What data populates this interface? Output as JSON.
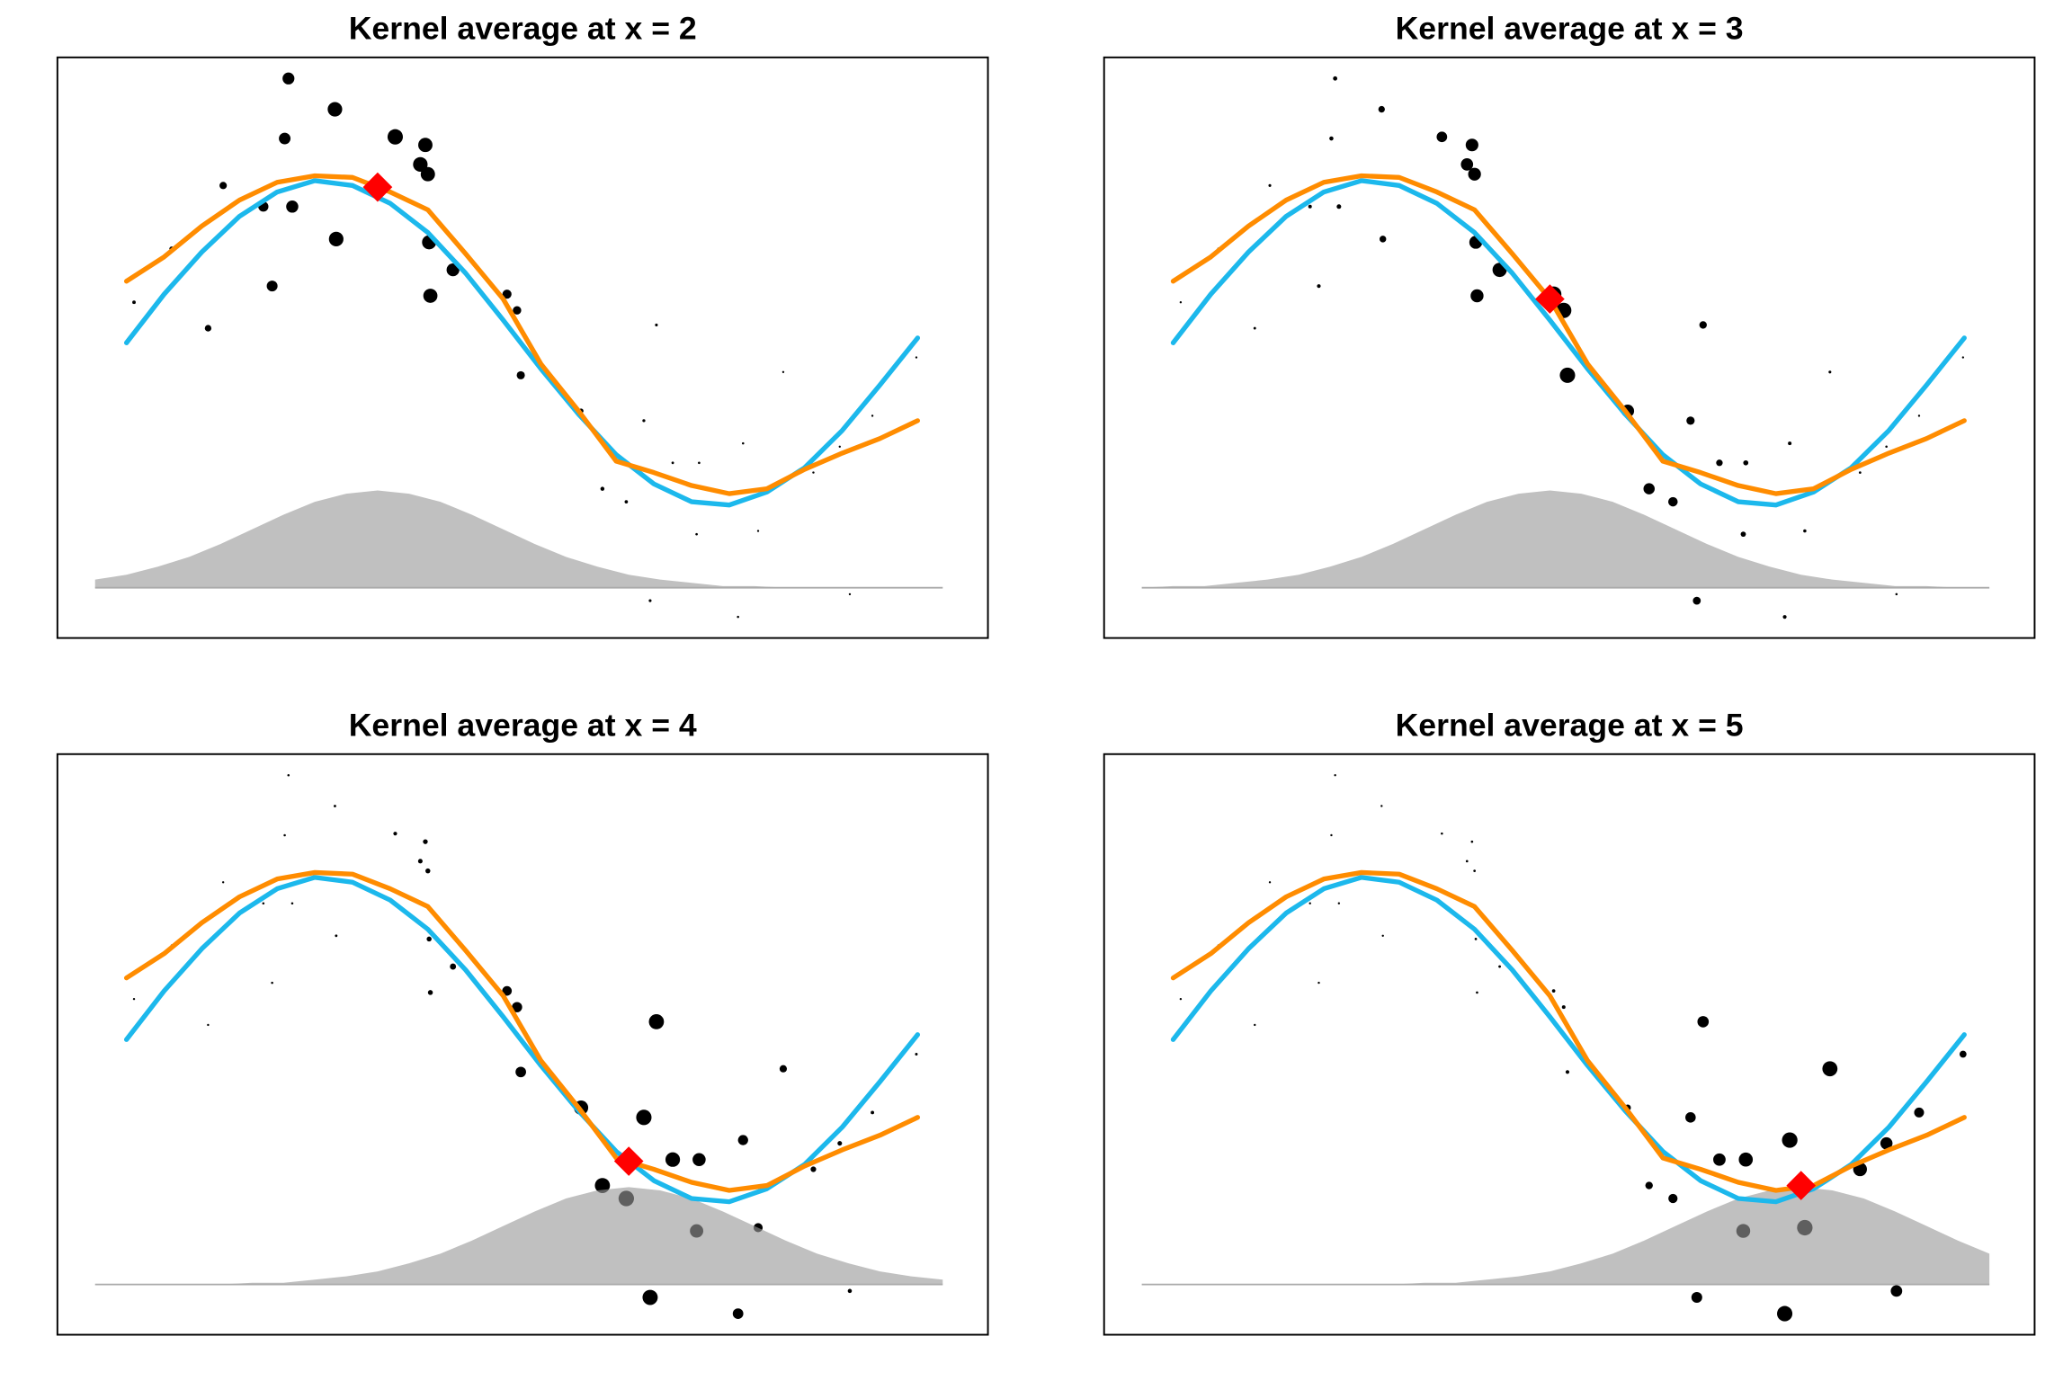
{
  "chart_data": [
    {
      "type": "scatter",
      "title": "Kernel average at x = 2",
      "xlim": [
        -0.55,
        6.86
      ],
      "ylim": [
        -1.82,
        1.76
      ],
      "x": [
        0,
        0.3,
        0.6,
        0.9,
        1.2,
        1.5,
        1.8,
        2.1,
        2.4,
        2.7,
        3.0,
        3.3,
        3.6,
        3.9,
        4.2,
        4.5,
        4.8,
        5.1,
        5.4,
        5.7,
        6.0,
        6.3
      ],
      "series": [
        {
          "color": "#1cb8ec",
          "values": [
            0,
            0.3,
            0.56,
            0.78,
            0.93,
            1.0,
            0.97,
            0.86,
            0.68,
            0.43,
            0.14,
            -0.16,
            -0.44,
            -0.69,
            -0.87,
            -0.98,
            -1.0,
            -0.92,
            -0.77,
            -0.54,
            -0.26,
            0.03
          ]
        },
        {
          "color": "#ff8c00",
          "values": [
            0.38,
            0.53,
            0.72,
            0.88,
            0.99,
            1.03,
            1.02,
            0.93,
            0.82,
            0.55,
            0.27,
            -0.13,
            -0.42,
            -0.73,
            -0.8,
            -0.88,
            -0.93,
            -0.9,
            -0.78,
            -0.68,
            -0.59,
            -0.48
          ]
        }
      ],
      "points": {
        "color": "#000000",
        "x": [
          0.06,
          0.36,
          0.65,
          0.77,
          1.09,
          1.16,
          1.26,
          1.29,
          1.32,
          1.66,
          1.67,
          2.14,
          2.34,
          2.38,
          2.4,
          2.41,
          2.42,
          2.6,
          3.03,
          3.11,
          3.14,
          3.62,
          3.79,
          3.98,
          4.12,
          4.17,
          4.22,
          4.35,
          4.54,
          4.56,
          4.87,
          4.91,
          5.03,
          5.23,
          5.47,
          5.68,
          5.76,
          5.94,
          6.29
        ],
        "y": [
          0.25,
          0.58,
          0.09,
          0.97,
          0.84,
          0.35,
          1.26,
          1.63,
          0.84,
          1.44,
          0.64,
          1.27,
          1.1,
          1.22,
          1.04,
          0.62,
          0.29,
          0.45,
          0.3,
          0.2,
          -0.2,
          -0.42,
          -0.9,
          -0.98,
          -0.48,
          -1.59,
          0.11,
          -0.74,
          -1.18,
          -0.74,
          -1.69,
          -0.62,
          -1.16,
          -0.18,
          -0.8,
          -0.64,
          -1.55,
          -0.45,
          -0.09
        ],
        "sizes": [
          0.1,
          0.19,
          0.33,
          0.39,
          0.6,
          0.65,
          0.71,
          0.73,
          0.75,
          0.93,
          0.93,
          0.99,
          0.93,
          0.91,
          0.91,
          0.9,
          0.9,
          0.8,
          0.52,
          0.47,
          0.45,
          0.2,
          0.14,
          0.09,
          0.06,
          0.05,
          0.05,
          0.03,
          0.02,
          0.02,
          0.01,
          0.01,
          0,
          0,
          0,
          0,
          0,
          0,
          0
        ]
      },
      "kernel": {
        "color": "#999999",
        "base": -1.51,
        "x": [
          -0.25,
          0,
          0.25,
          0.5,
          0.75,
          1,
          1.25,
          1.5,
          1.75,
          2,
          2.25,
          2.5,
          2.75,
          3,
          3.25,
          3.5,
          3.75,
          4,
          4.25,
          4.5,
          4.75,
          5,
          5.25,
          5.5,
          5.75,
          6,
          6.25,
          6.5
        ],
        "values": [
          0.05,
          0.08,
          0.13,
          0.19,
          0.27,
          0.36,
          0.45,
          0.53,
          0.58,
          0.6,
          0.58,
          0.53,
          0.45,
          0.36,
          0.27,
          0.19,
          0.13,
          0.08,
          0.05,
          0.03,
          0.01,
          0.01,
          0,
          0,
          0,
          0,
          0,
          0
        ]
      },
      "marker": {
        "color": "#ff0000",
        "x": 2,
        "y": 0.96
      }
    },
    {
      "type": "scatter",
      "title": "Kernel average at x = 3",
      "xlim": [
        -0.55,
        6.86
      ],
      "ylim": [
        -1.82,
        1.76
      ],
      "x": [
        0,
        0.3,
        0.6,
        0.9,
        1.2,
        1.5,
        1.8,
        2.1,
        2.4,
        2.7,
        3.0,
        3.3,
        3.6,
        3.9,
        4.2,
        4.5,
        4.8,
        5.1,
        5.4,
        5.7,
        6.0,
        6.3
      ],
      "series": [
        {
          "color": "#1cb8ec",
          "values": [
            0,
            0.3,
            0.56,
            0.78,
            0.93,
            1.0,
            0.97,
            0.86,
            0.68,
            0.43,
            0.14,
            -0.16,
            -0.44,
            -0.69,
            -0.87,
            -0.98,
            -1.0,
            -0.92,
            -0.77,
            -0.54,
            -0.26,
            0.03
          ]
        },
        {
          "color": "#ff8c00",
          "values": [
            0.38,
            0.53,
            0.72,
            0.88,
            0.99,
            1.03,
            1.02,
            0.93,
            0.82,
            0.55,
            0.27,
            -0.13,
            -0.42,
            -0.73,
            -0.8,
            -0.88,
            -0.93,
            -0.9,
            -0.78,
            -0.68,
            -0.59,
            -0.48
          ]
        }
      ],
      "points": {
        "color": "#000000",
        "x": [
          0.06,
          0.36,
          0.65,
          0.77,
          1.09,
          1.16,
          1.26,
          1.29,
          1.32,
          1.66,
          1.67,
          2.14,
          2.34,
          2.38,
          2.4,
          2.41,
          2.42,
          2.6,
          3.03,
          3.11,
          3.14,
          3.62,
          3.79,
          3.98,
          4.12,
          4.17,
          4.22,
          4.35,
          4.54,
          4.56,
          4.87,
          4.91,
          5.03,
          5.23,
          5.47,
          5.68,
          5.76,
          5.94,
          6.29
        ],
        "y": [
          0.25,
          0.58,
          0.09,
          0.97,
          0.84,
          0.35,
          1.26,
          1.63,
          0.84,
          1.44,
          0.64,
          1.27,
          1.1,
          1.22,
          1.04,
          0.62,
          0.29,
          0.45,
          0.3,
          0.2,
          -0.2,
          -0.42,
          -0.9,
          -0.98,
          -0.48,
          -1.59,
          0.11,
          -0.74,
          -1.18,
          -0.74,
          -1.69,
          -0.62,
          -1.16,
          -0.18,
          -0.8,
          -0.64,
          -1.55,
          -0.45,
          -0.09
        ],
        "sizes": [
          0,
          0.01,
          0.03,
          0.05,
          0.11,
          0.12,
          0.15,
          0.16,
          0.18,
          0.33,
          0.34,
          0.63,
          0.76,
          0.79,
          0.8,
          0.81,
          0.81,
          0.91,
          1.0,
          0.99,
          0.99,
          0.79,
          0.68,
          0.55,
          0.46,
          0.43,
          0.4,
          0.33,
          0.23,
          0.22,
          0.12,
          0.11,
          0.08,
          0.05,
          0.02,
          0.01,
          0.01,
          0,
          0
        ]
      },
      "kernel": {
        "color": "#999999",
        "base": -1.51,
        "x": [
          -0.25,
          0,
          0.25,
          0.5,
          0.75,
          1,
          1.25,
          1.5,
          1.75,
          2,
          2.25,
          2.5,
          2.75,
          3,
          3.25,
          3.5,
          3.75,
          4,
          4.25,
          4.5,
          4.75,
          5,
          5.25,
          5.5,
          5.75,
          6,
          6.25,
          6.5
        ],
        "values": [
          0,
          0.01,
          0.01,
          0.03,
          0.05,
          0.08,
          0.13,
          0.19,
          0.27,
          0.36,
          0.45,
          0.53,
          0.58,
          0.6,
          0.58,
          0.53,
          0.45,
          0.36,
          0.27,
          0.19,
          0.13,
          0.08,
          0.05,
          0.03,
          0.01,
          0.01,
          0,
          0
        ]
      },
      "marker": {
        "color": "#ff0000",
        "x": 3,
        "y": 0.27
      }
    },
    {
      "type": "scatter",
      "title": "Kernel average at x = 4",
      "xlim": [
        -0.55,
        6.86
      ],
      "ylim": [
        -1.82,
        1.76
      ],
      "x": [
        0,
        0.3,
        0.6,
        0.9,
        1.2,
        1.5,
        1.8,
        2.1,
        2.4,
        2.7,
        3.0,
        3.3,
        3.6,
        3.9,
        4.2,
        4.5,
        4.8,
        5.1,
        5.4,
        5.7,
        6.0,
        6.3
      ],
      "series": [
        {
          "color": "#1cb8ec",
          "values": [
            0,
            0.3,
            0.56,
            0.78,
            0.93,
            1.0,
            0.97,
            0.86,
            0.68,
            0.43,
            0.14,
            -0.16,
            -0.44,
            -0.69,
            -0.87,
            -0.98,
            -1.0,
            -0.92,
            -0.77,
            -0.54,
            -0.26,
            0.03
          ]
        },
        {
          "color": "#ff8c00",
          "values": [
            0.38,
            0.53,
            0.72,
            0.88,
            0.99,
            1.03,
            1.02,
            0.93,
            0.82,
            0.55,
            0.27,
            -0.13,
            -0.42,
            -0.73,
            -0.8,
            -0.88,
            -0.93,
            -0.9,
            -0.78,
            -0.68,
            -0.59,
            -0.48
          ]
        }
      ],
      "points": {
        "color": "#000000",
        "x": [
          0.06,
          0.36,
          0.65,
          0.77,
          1.09,
          1.16,
          1.26,
          1.29,
          1.32,
          1.66,
          1.67,
          2.14,
          2.34,
          2.38,
          2.4,
          2.41,
          2.42,
          2.6,
          3.03,
          3.11,
          3.14,
          3.62,
          3.79,
          3.98,
          4.12,
          4.17,
          4.22,
          4.35,
          4.54,
          4.56,
          4.87,
          4.91,
          5.03,
          5.23,
          5.47,
          5.68,
          5.76,
          5.94,
          6.29
        ],
        "y": [
          0.25,
          0.58,
          0.09,
          0.97,
          0.84,
          0.35,
          1.26,
          1.63,
          0.84,
          1.44,
          0.64,
          1.27,
          1.1,
          1.22,
          1.04,
          0.62,
          0.29,
          0.45,
          0.3,
          0.2,
          -0.2,
          -0.42,
          -0.9,
          -0.98,
          -0.48,
          -1.59,
          0.11,
          -0.74,
          -1.18,
          -0.74,
          -1.69,
          -0.62,
          -1.16,
          -0.18,
          -0.8,
          -0.64,
          -1.55,
          -0.45,
          -0.09
        ],
        "sizes": [
          0,
          0,
          0,
          0,
          0.01,
          0.01,
          0.01,
          0.01,
          0.01,
          0.03,
          0.03,
          0.12,
          0.18,
          0.2,
          0.21,
          0.21,
          0.21,
          0.3,
          0.56,
          0.61,
          0.63,
          0.91,
          0.97,
          1.0,
          0.99,
          0.98,
          0.97,
          0.93,
          0.84,
          0.82,
          0.63,
          0.6,
          0.52,
          0.39,
          0.26,
          0.18,
          0.15,
          0.1,
          0.04
        ]
      },
      "kernel": {
        "color": "#999999",
        "base": -1.51,
        "x": [
          -0.25,
          0,
          0.25,
          0.5,
          0.75,
          1,
          1.25,
          1.5,
          1.75,
          2,
          2.25,
          2.5,
          2.75,
          3,
          3.25,
          3.5,
          3.75,
          4,
          4.25,
          4.5,
          4.75,
          5,
          5.25,
          5.5,
          5.75,
          6,
          6.25,
          6.5
        ],
        "values": [
          0,
          0,
          0,
          0,
          0,
          0.01,
          0.01,
          0.03,
          0.05,
          0.08,
          0.13,
          0.19,
          0.27,
          0.36,
          0.45,
          0.53,
          0.58,
          0.6,
          0.58,
          0.53,
          0.45,
          0.36,
          0.27,
          0.19,
          0.13,
          0.08,
          0.05,
          0.03
        ]
      },
      "marker": {
        "color": "#ff0000",
        "x": 4,
        "y": -0.75
      }
    },
    {
      "type": "scatter",
      "title": "Kernel average at x = 5",
      "xlim": [
        -0.55,
        6.86
      ],
      "ylim": [
        -1.82,
        1.76
      ],
      "x": [
        0,
        0.3,
        0.6,
        0.9,
        1.2,
        1.5,
        1.8,
        2.1,
        2.4,
        2.7,
        3.0,
        3.3,
        3.6,
        3.9,
        4.2,
        4.5,
        4.8,
        5.1,
        5.4,
        5.7,
        6.0,
        6.3
      ],
      "series": [
        {
          "color": "#1cb8ec",
          "values": [
            0,
            0.3,
            0.56,
            0.78,
            0.93,
            1.0,
            0.97,
            0.86,
            0.68,
            0.43,
            0.14,
            -0.16,
            -0.44,
            -0.69,
            -0.87,
            -0.98,
            -1.0,
            -0.92,
            -0.77,
            -0.54,
            -0.26,
            0.03
          ]
        },
        {
          "color": "#ff8c00",
          "values": [
            0.38,
            0.53,
            0.72,
            0.88,
            0.99,
            1.03,
            1.02,
            0.93,
            0.82,
            0.55,
            0.27,
            -0.13,
            -0.42,
            -0.73,
            -0.8,
            -0.88,
            -0.93,
            -0.9,
            -0.78,
            -0.68,
            -0.59,
            -0.48
          ]
        }
      ],
      "points": {
        "color": "#000000",
        "x": [
          0.06,
          0.36,
          0.65,
          0.77,
          1.09,
          1.16,
          1.26,
          1.29,
          1.32,
          1.66,
          1.67,
          2.14,
          2.34,
          2.38,
          2.4,
          2.41,
          2.42,
          2.6,
          3.03,
          3.11,
          3.14,
          3.62,
          3.79,
          3.98,
          4.12,
          4.17,
          4.22,
          4.35,
          4.54,
          4.56,
          4.87,
          4.91,
          5.03,
          5.23,
          5.47,
          5.68,
          5.76,
          5.94,
          6.29
        ],
        "y": [
          0.25,
          0.58,
          0.09,
          0.97,
          0.84,
          0.35,
          1.26,
          1.63,
          0.84,
          1.44,
          0.64,
          1.27,
          1.1,
          1.22,
          1.04,
          0.62,
          0.29,
          0.45,
          0.3,
          0.2,
          -0.2,
          -0.42,
          -0.9,
          -0.98,
          -0.48,
          -1.59,
          0.11,
          -0.74,
          -1.18,
          -0.74,
          -1.69,
          -0.62,
          -1.16,
          -0.18,
          -0.8,
          -0.64,
          -1.55,
          -0.45,
          -0.09
        ],
        "sizes": [
          0,
          0,
          0,
          0,
          0,
          0,
          0,
          0,
          0,
          0,
          0,
          0.01,
          0.02,
          0.02,
          0.02,
          0.02,
          0.02,
          0.03,
          0.09,
          0.11,
          0.12,
          0.31,
          0.4,
          0.53,
          0.62,
          0.65,
          0.69,
          0.77,
          0.88,
          0.89,
          0.99,
          1.0,
          1.0,
          0.97,
          0.87,
          0.75,
          0.7,
          0.58,
          0.36
        ]
      },
      "kernel": {
        "color": "#999999",
        "base": -1.51,
        "x": [
          -0.25,
          0,
          0.25,
          0.5,
          0.75,
          1,
          1.25,
          1.5,
          1.75,
          2,
          2.25,
          2.5,
          2.75,
          3,
          3.25,
          3.5,
          3.75,
          4,
          4.25,
          4.5,
          4.75,
          5,
          5.25,
          5.5,
          5.75,
          6,
          6.25,
          6.5
        ],
        "values": [
          0,
          0,
          0,
          0,
          0,
          0,
          0,
          0,
          0,
          0.01,
          0.01,
          0.03,
          0.05,
          0.08,
          0.13,
          0.19,
          0.27,
          0.36,
          0.45,
          0.53,
          0.58,
          0.6,
          0.58,
          0.53,
          0.45,
          0.36,
          0.27,
          0.19
        ]
      },
      "marker": {
        "color": "#ff0000",
        "x": 5,
        "y": -0.9
      }
    }
  ]
}
